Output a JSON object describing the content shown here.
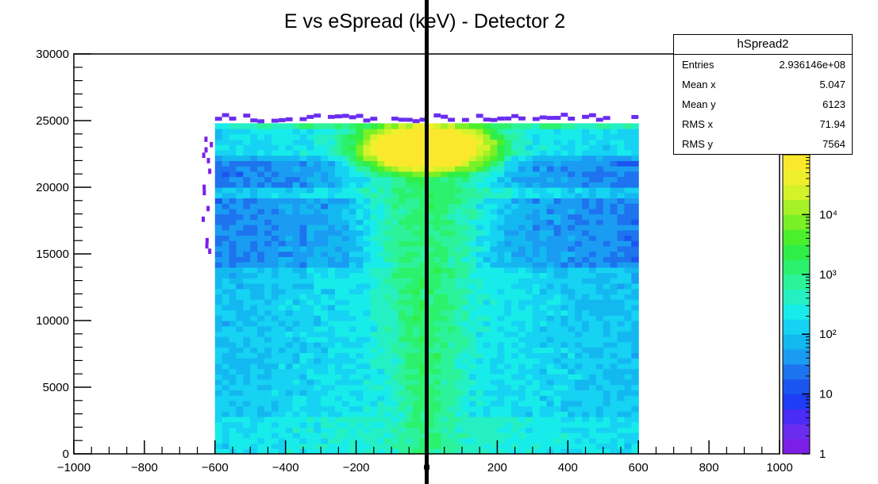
{
  "chart_data": {
    "type": "heatmap",
    "title": "E vs eSpread (keV) - Detector 2",
    "xlabel": "",
    "ylabel": "",
    "xlim": [
      -1000,
      1000
    ],
    "ylim": [
      0,
      30000
    ],
    "x_ticks": [
      -1000,
      -800,
      -600,
      -400,
      -200,
      0,
      200,
      400,
      600,
      800,
      1000
    ],
    "x_tick_labels": [
      "−1000",
      "−800",
      "−600",
      "−400",
      "−200",
      "0",
      "200",
      "400",
      "600",
      "800",
      "1000"
    ],
    "y_ticks": [
      0,
      5000,
      10000,
      15000,
      20000,
      25000,
      30000
    ],
    "y_tick_labels": [
      "0",
      "5000",
      "10000",
      "15000",
      "20000",
      "25000",
      "30000"
    ],
    "colorbar": {
      "scale": "log",
      "range": [
        1,
        100000
      ],
      "tick_values": [
        1,
        10,
        100,
        1000,
        10000
      ],
      "tick_labels": [
        "1",
        "10",
        "10²",
        "10³",
        "10⁴"
      ],
      "colors": [
        "#7b1fe6",
        "#6a2df0",
        "#4a2cf6",
        "#1f3df5",
        "#1a55f0",
        "#1e73ee",
        "#1a9cf2",
        "#14b8f0",
        "#16d2f3",
        "#18ecea",
        "#24f0c4",
        "#2cf39a",
        "#2cf16c",
        "#30ee48",
        "#4cef2c",
        "#7af026",
        "#a6f128",
        "#d4f22a",
        "#f0ef2c",
        "#fbe82c"
      ]
    },
    "data_region": {
      "x_range": [
        -600,
        600
      ],
      "y_range": [
        0,
        24800
      ],
      "left_sparse_edge_x": -640,
      "left_sparse_edge_y_range": [
        15000,
        23500
      ]
    },
    "features": {
      "central_band": {
        "x": 0,
        "half_width_bottom": 50,
        "half_width_top": 140,
        "peak_y": 23000
      },
      "horizontal_lines_y": [
        19600,
        24600
      ],
      "vertical_line_x": 0
    },
    "stats_box": {
      "name": "hSpread2",
      "rows": [
        {
          "label": "Entries",
          "value": "2.936146e+08"
        },
        {
          "label": "Mean x",
          "value": "5.047"
        },
        {
          "label": "Mean y",
          "value": "6123"
        },
        {
          "label": "RMS x",
          "value": "71.94"
        },
        {
          "label": "RMS y",
          "value": "7564"
        }
      ]
    }
  }
}
